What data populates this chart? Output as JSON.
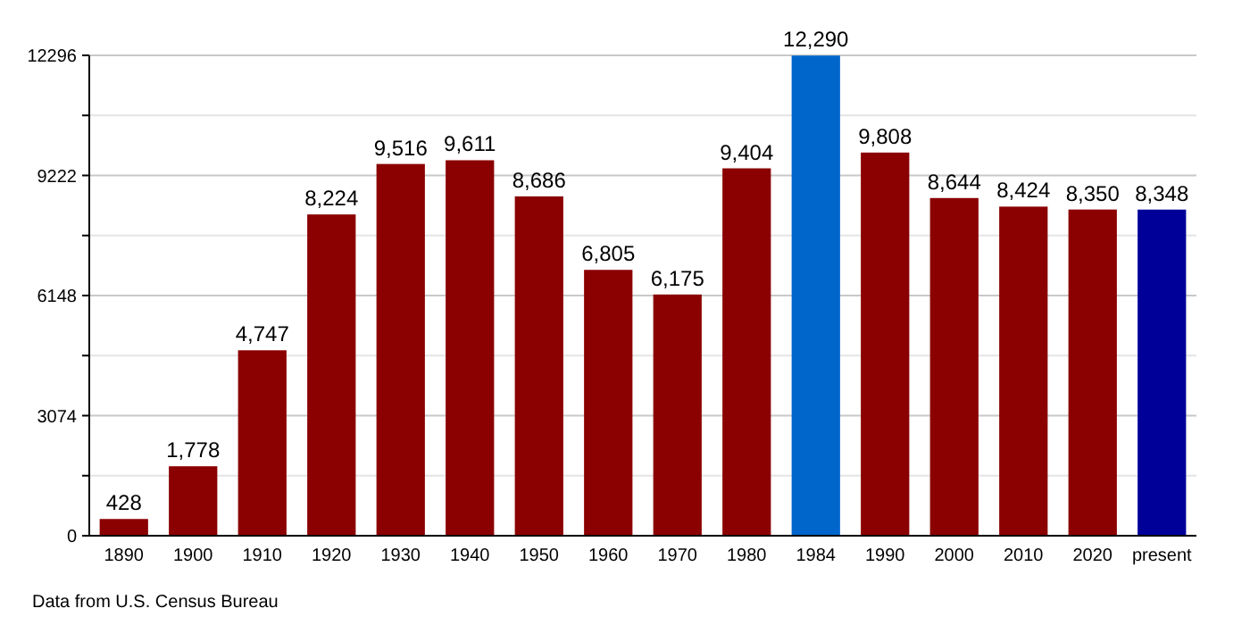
{
  "chart_data": {
    "type": "bar",
    "categories": [
      "1890",
      "1900",
      "1910",
      "1920",
      "1930",
      "1940",
      "1950",
      "1960",
      "1970",
      "1980",
      "1984",
      "1990",
      "2000",
      "2010",
      "2020",
      "present"
    ],
    "values": [
      428,
      1778,
      4747,
      8224,
      9516,
      9611,
      8686,
      6805,
      6175,
      9404,
      12290,
      9808,
      8644,
      8424,
      8350,
      8348
    ],
    "value_labels": [
      "428",
      "1,778",
      "4,747",
      "8,224",
      "9,516",
      "9,611",
      "8,686",
      "6,805",
      "6,175",
      "9,404",
      "12,290",
      "9,808",
      "8,644",
      "8,424",
      "8,350",
      "8,348"
    ],
    "colors": [
      "#8b0000",
      "#8b0000",
      "#8b0000",
      "#8b0000",
      "#8b0000",
      "#8b0000",
      "#8b0000",
      "#8b0000",
      "#8b0000",
      "#8b0000",
      "#0066cc",
      "#8b0000",
      "#8b0000",
      "#8b0000",
      "#8b0000",
      "#000099"
    ],
    "ylim": [
      0,
      12296
    ],
    "yticks": [
      0,
      {
        "value": 1537,
        "label": null
      },
      3074,
      {
        "value": 4611,
        "label": null
      },
      6148,
      {
        "value": 7685,
        "label": null
      },
      9222,
      {
        "value": 10759,
        "label": null
      },
      12296
    ],
    "grid": "y",
    "annotations": [
      "Data from U.S. Census Bureau"
    ]
  }
}
